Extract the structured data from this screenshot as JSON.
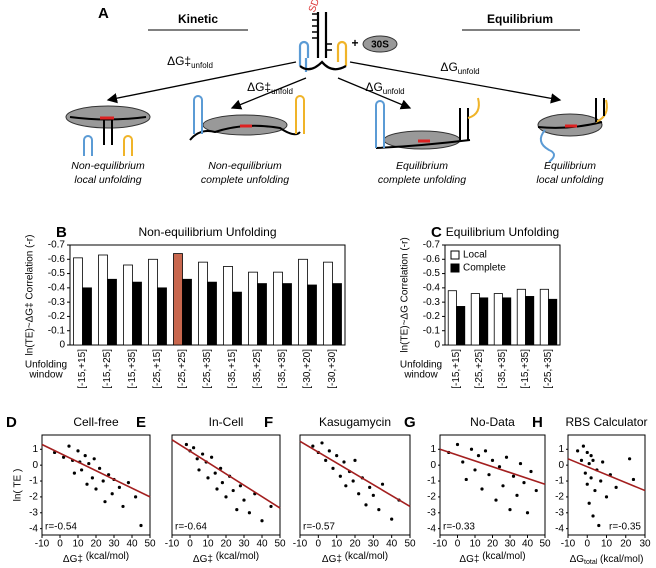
{
  "diagram": {
    "letter": "A",
    "kinetic": "Kinetic",
    "equilibrium": "Equilibrium",
    "plus": "+",
    "ribosome": "30S",
    "sd": "SD",
    "arrows": [
      {
        "symbol": "ΔG‡",
        "sub": "unfold"
      },
      {
        "symbol": "ΔG‡",
        "sub": "unfold"
      },
      {
        "symbol": "ΔG",
        "sub": "unfold"
      },
      {
        "symbol": "ΔG",
        "sub": "unfold"
      }
    ],
    "captions": [
      [
        "Non-equilibrium",
        "local unfolding"
      ],
      [
        "Non-equilibrium",
        "complete unfolding"
      ],
      [
        "Equilibrium",
        "complete unfolding"
      ],
      [
        "Equilibrium",
        "local unfolding"
      ]
    ]
  },
  "chart_data": [
    {
      "type": "bar",
      "letter": "B",
      "title": "Non-equilibrium Unfolding",
      "y_label": "ln(TE)~ΔG‡ Correlation (-r)",
      "x_title": [
        "Unfolding",
        "window"
      ],
      "categories": [
        "[-15,+15]",
        "[-15,+25]",
        "[-15,+35]",
        "[-25,+15]",
        "[-25,+25]",
        "[-25,+35]",
        "[-35,+15]",
        "[-35,+25]",
        "[-35,+35]",
        "[-30,+20]",
        "[-30,+30]"
      ],
      "series": [
        {
          "color": "#ffffff",
          "values": [
            -0.61,
            -0.63,
            -0.56,
            -0.6,
            -0.64,
            -0.58,
            -0.55,
            -0.51,
            -0.51,
            -0.6,
            -0.58
          ]
        },
        {
          "color": "#000000",
          "values": [
            -0.4,
            -0.46,
            -0.44,
            -0.4,
            -0.46,
            -0.44,
            -0.37,
            -0.43,
            -0.43,
            -0.42,
            -0.43
          ]
        }
      ],
      "highlight": {
        "series": 0,
        "index": 4,
        "color": "#c8674e"
      },
      "ylim": [
        0,
        -0.7
      ],
      "yticks": [
        0,
        -0.1,
        -0.2,
        -0.3,
        -0.4,
        -0.5,
        -0.6,
        -0.7
      ]
    },
    {
      "type": "bar",
      "letter": "C",
      "title": "Equilibrium Unfolding",
      "y_label": "ln(TE)~ΔG Correlation (-r)",
      "x_title": [
        "Unfolding",
        "window"
      ],
      "categories": [
        "[-15,+15]",
        "[-25,+25]",
        "[-35,+35]",
        "[-15,+35]",
        "[-25,+35]"
      ],
      "series": [
        {
          "name": "Local",
          "color": "#ffffff",
          "values": [
            -0.38,
            -0.36,
            -0.36,
            -0.39,
            -0.39
          ]
        },
        {
          "name": "Complete",
          "color": "#000000",
          "values": [
            -0.27,
            -0.33,
            -0.33,
            -0.34,
            -0.32
          ]
        }
      ],
      "legend": "upper left",
      "ylim": [
        0,
        -0.7
      ],
      "yticks": [
        0,
        -0.1,
        -0.2,
        -0.3,
        -0.4,
        -0.5,
        -0.6,
        -0.7
      ]
    },
    {
      "type": "scatter",
      "letter": "D",
      "title": "Cell-free",
      "y_label": "ln( TE )",
      "x_label": {
        "main": "ΔG‡",
        "sub": "",
        "unit": " (kcal/mol)"
      },
      "annotation": "r=-0.54",
      "annotation_corner": "lower left",
      "x": [
        -3,
        2,
        5,
        7,
        8,
        10,
        11,
        12,
        14,
        15,
        16,
        18,
        19,
        20,
        22,
        24,
        25,
        27,
        29,
        30,
        33,
        35,
        38,
        42,
        45
      ],
      "values": [
        0.8,
        0.5,
        1.2,
        0.3,
        -0.5,
        0.9,
        0.2,
        -0.3,
        0.6,
        -1.2,
        0.1,
        -0.8,
        0.4,
        -1.5,
        -0.2,
        -1.0,
        -2.3,
        -0.6,
        -1.8,
        -0.9,
        -1.4,
        -2.6,
        -1.1,
        -2.0,
        -3.8
      ],
      "color": "#000000",
      "fit": {
        "x": [
          -10,
          50
        ],
        "values": [
          1.3,
          -2.0
        ],
        "color": "#a31f1f"
      },
      "xlim": [
        -10,
        50
      ],
      "xticks": [
        -10,
        0,
        10,
        20,
        30,
        40,
        50
      ],
      "ylim": [
        -4.4,
        1.9
      ],
      "yticks": [
        1,
        0,
        -1,
        -2,
        -3,
        -4
      ]
    },
    {
      "type": "scatter",
      "letter": "E",
      "title": "In-Cell",
      "x_label": {
        "main": "ΔG‡",
        "sub": "",
        "unit": " (kcal/mol)"
      },
      "annotation": "r=-0.64",
      "annotation_corner": "lower left",
      "x": [
        -2,
        0,
        2,
        4,
        5,
        7,
        9,
        10,
        12,
        14,
        15,
        17,
        18,
        20,
        22,
        24,
        26,
        28,
        30,
        33,
        36,
        40,
        45
      ],
      "values": [
        1.3,
        0.9,
        1.1,
        0.4,
        -0.3,
        0.7,
        0.2,
        -0.8,
        0.5,
        -0.5,
        -1.5,
        -0.2,
        -1.1,
        -2.0,
        -0.7,
        -1.6,
        -2.8,
        -1.3,
        -2.2,
        -3.0,
        -1.8,
        -3.5,
        -2.6
      ],
      "color": "#000000",
      "fit": {
        "x": [
          -10,
          50
        ],
        "values": [
          1.6,
          -2.7
        ],
        "color": "#a31f1f"
      },
      "xlim": [
        -10,
        50
      ],
      "xticks": [
        -10,
        0,
        10,
        20,
        30,
        40,
        50
      ],
      "ylim": [
        -4.4,
        1.9
      ]
    },
    {
      "type": "scatter",
      "letter": "F",
      "title": "Kasugamycin",
      "x_label": {
        "main": "ΔG‡",
        "sub": "",
        "unit": " (kcal/mol)"
      },
      "annotation": "r=-0.57",
      "annotation_corner": "lower left",
      "x": [
        -3,
        0,
        2,
        4,
        6,
        8,
        10,
        12,
        14,
        15,
        17,
        19,
        20,
        22,
        24,
        26,
        28,
        30,
        33,
        35,
        40,
        44
      ],
      "values": [
        1.2,
        0.8,
        1.4,
        0.3,
        0.9,
        -0.2,
        0.6,
        -0.7,
        0.2,
        -1.3,
        -0.4,
        -1.0,
        0.3,
        -1.8,
        -0.8,
        -2.5,
        -1.4,
        -1.9,
        -2.8,
        -1.2,
        -3.4,
        -2.2
      ],
      "color": "#000000",
      "fit": {
        "x": [
          -10,
          50
        ],
        "values": [
          1.5,
          -2.6
        ],
        "color": "#a31f1f"
      },
      "xlim": [
        -10,
        50
      ],
      "xticks": [
        -10,
        0,
        10,
        20,
        30,
        40,
        50
      ],
      "ylim": [
        -4.4,
        1.9
      ]
    },
    {
      "type": "scatter",
      "letter": "G",
      "title": "No-Data",
      "x_label": {
        "main": "ΔG‡",
        "sub": "",
        "unit": " (kcal/mol)"
      },
      "annotation": "r=-0.33",
      "annotation_corner": "lower left",
      "x": [
        -5,
        0,
        3,
        5,
        8,
        10,
        12,
        14,
        16,
        18,
        20,
        22,
        24,
        26,
        28,
        30,
        32,
        34,
        36,
        38,
        40,
        42,
        45
      ],
      "values": [
        0.8,
        1.3,
        0.2,
        -0.9,
        1.0,
        -0.3,
        0.6,
        -1.5,
        0.9,
        -0.6,
        0.3,
        -2.2,
        -0.1,
        -1.3,
        0.5,
        -2.8,
        -0.7,
        -1.9,
        0.1,
        -1.1,
        -3.0,
        -0.4,
        -1.6
      ],
      "color": "#000000",
      "fit": {
        "x": [
          -10,
          50
        ],
        "values": [
          1.0,
          -1.2
        ],
        "color": "#a31f1f"
      },
      "xlim": [
        -10,
        50
      ],
      "xticks": [
        -10,
        0,
        10,
        20,
        30,
        40,
        50
      ],
      "ylim": [
        -4.4,
        1.9
      ],
      "yticks": [
        1,
        0,
        -1,
        -2,
        -3,
        -4
      ]
    },
    {
      "type": "scatter",
      "letter": "H",
      "title": "RBS Calculator",
      "x_label": {
        "main": "ΔG",
        "sub": "total",
        "unit": " (kcal/mol)"
      },
      "annotation": "r=-0.35",
      "annotation_corner": "lower right",
      "x": [
        -5,
        -3,
        -2,
        -1,
        0,
        0,
        1,
        1,
        2,
        2,
        3,
        3,
        4,
        5,
        6,
        7,
        8,
        10,
        12,
        15,
        22,
        24
      ],
      "values": [
        0.9,
        0.3,
        1.2,
        -0.5,
        0.8,
        -1.2,
        0.1,
        -2.4,
        0.6,
        -0.8,
        -3.2,
        0.3,
        -1.6,
        -0.3,
        -3.8,
        -1.0,
        0.2,
        -2.0,
        -0.6,
        -1.4,
        0.4,
        -0.9
      ],
      "color": "#000000",
      "fit": {
        "x": [
          -10,
          30
        ],
        "values": [
          0.4,
          -1.6
        ],
        "color": "#a31f1f"
      },
      "xlim": [
        -10,
        30
      ],
      "xticks": [
        -10,
        0,
        10,
        20,
        30
      ],
      "ylim": [
        -4.4,
        1.9
      ],
      "yticks": [
        1,
        0,
        -1,
        -2,
        -3,
        -4
      ]
    }
  ]
}
